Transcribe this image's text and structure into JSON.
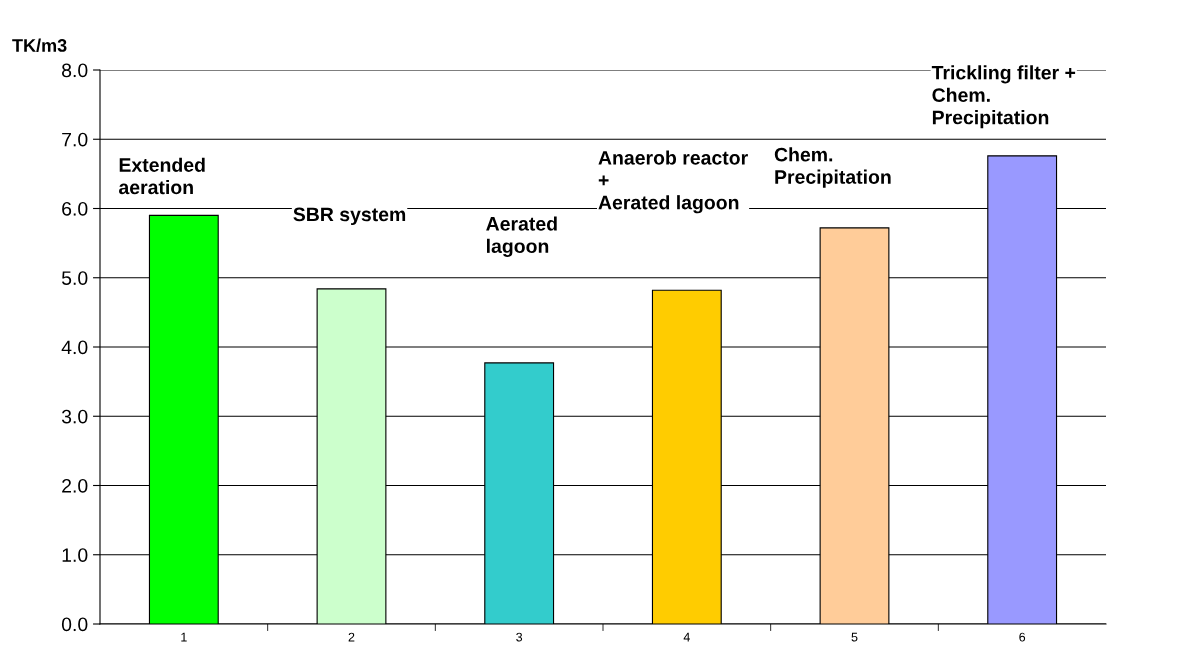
{
  "chart_data": {
    "type": "bar",
    "ylabel": "TK/m3",
    "categories": [
      "1",
      "2",
      "3",
      "4",
      "5",
      "6"
    ],
    "values": [
      5.9,
      4.84,
      3.77,
      4.82,
      5.72,
      6.76
    ],
    "colors": [
      "#00ff00",
      "#ccffcc",
      "#33cccc",
      "#ffcc00",
      "#ffcc99",
      "#9999ff"
    ],
    "ylim": [
      0.0,
      8.0
    ],
    "yticks": [
      {
        "value": 0,
        "label": "0.0"
      },
      {
        "value": 1,
        "label": "1.0"
      },
      {
        "value": 2,
        "label": "2.0"
      },
      {
        "value": 3,
        "label": "3.0"
      },
      {
        "value": 4,
        "label": "4.0"
      },
      {
        "value": 5,
        "label": "5.0"
      },
      {
        "value": 6,
        "label": "6.0"
      },
      {
        "value": 7,
        "label": "7.0"
      },
      {
        "value": 8,
        "label": "8.0"
      }
    ],
    "grid": "y",
    "annotations": [
      "Extended\naeration",
      "SBR system",
      "Aerated\nlagoon",
      "Anaerob reactor\n+\nAerated lagoon",
      "Chem.\nPrecipitation",
      "Trickling filter +\nChem.\nPrecipitation"
    ]
  }
}
